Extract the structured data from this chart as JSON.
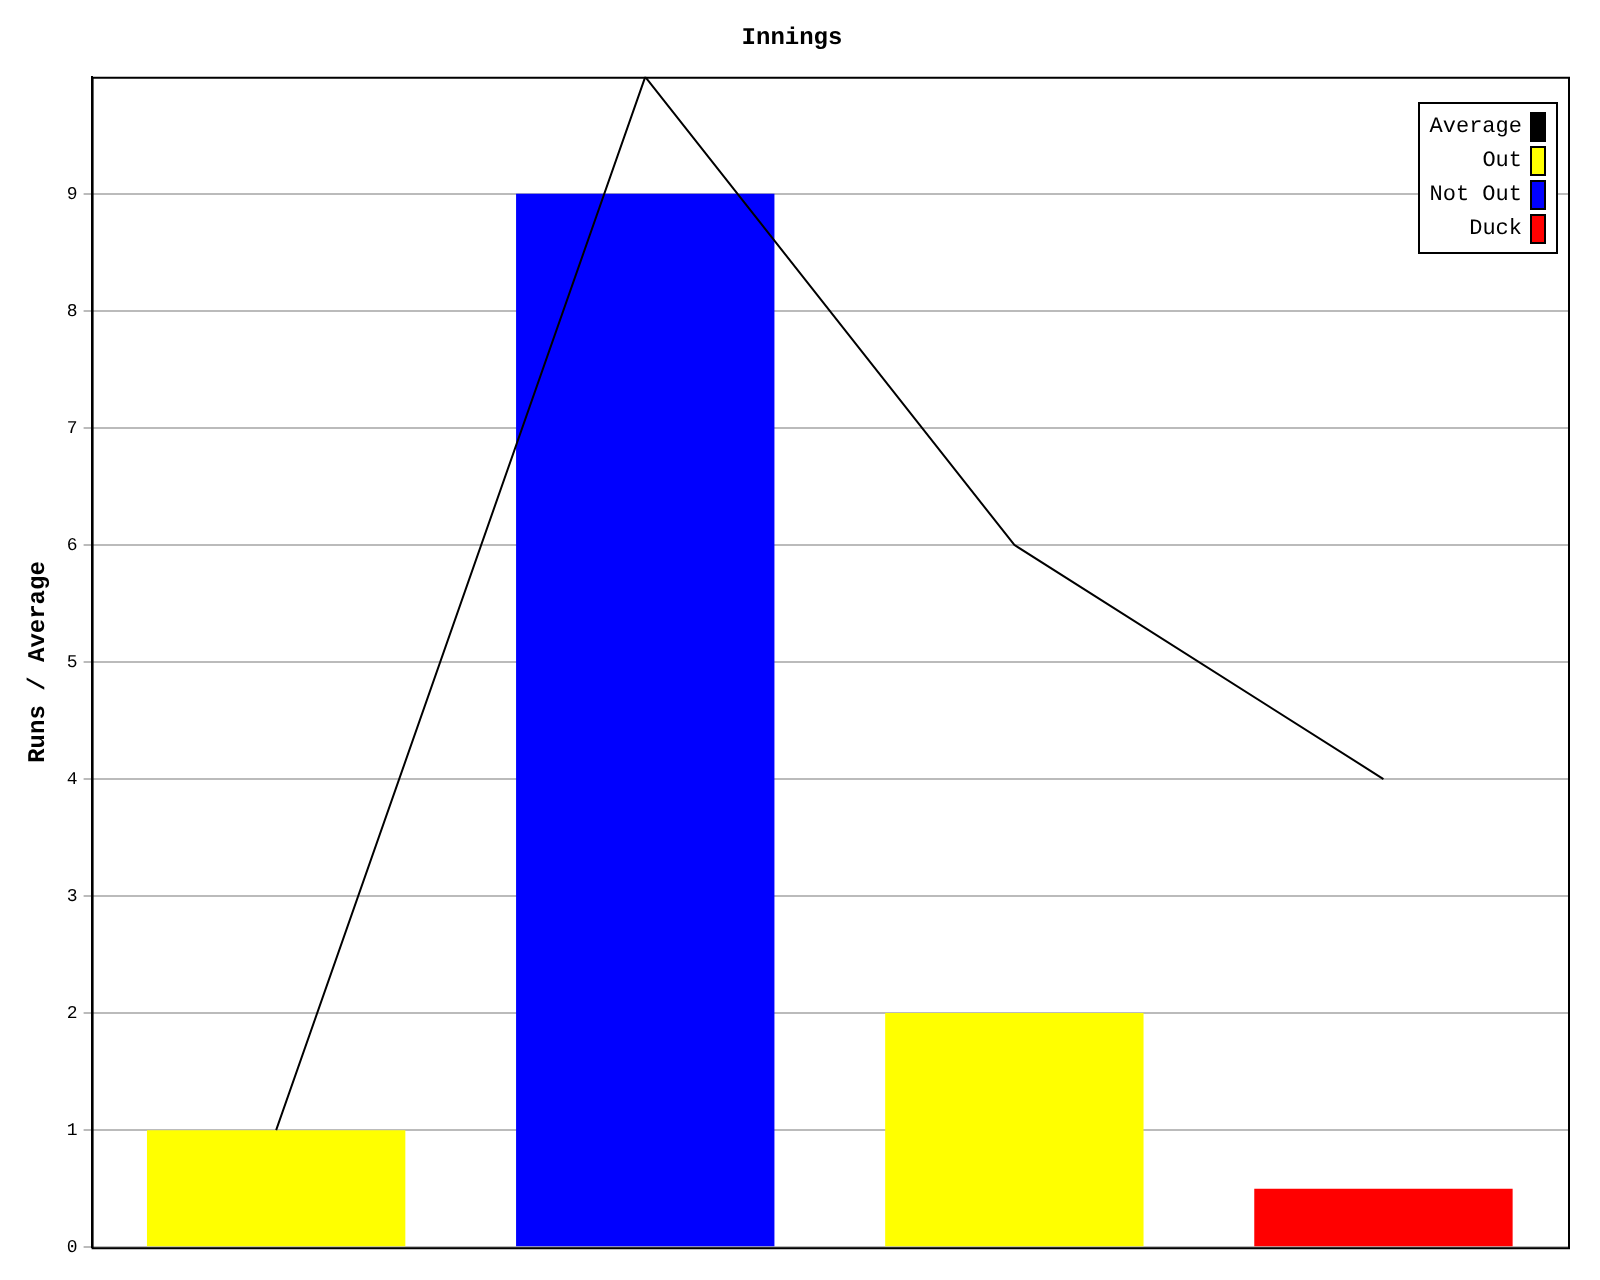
{
  "chart_data": {
    "type": "bar",
    "title": "Innings",
    "ylabel": "Runs / Average",
    "categories": [
      null,
      null,
      null,
      null
    ],
    "stacked": true,
    "ylim": [
      0,
      10
    ],
    "yticks": [
      0,
      1,
      2,
      3,
      4,
      5,
      6,
      7,
      8,
      9
    ],
    "grid": "y",
    "legend": "top right",
    "marker": "none",
    "series": [
      {
        "name": "Average",
        "type": "line",
        "color": "#000000",
        "values": [
          1,
          10,
          6,
          4
        ]
      },
      {
        "name": "Out",
        "color": "#ffff00",
        "values": [
          1,
          null,
          2,
          null
        ]
      },
      {
        "name": "Not Out",
        "color": "#0000ff",
        "values": [
          null,
          9,
          null,
          null
        ]
      },
      {
        "name": "Duck",
        "color": "#ff0000",
        "values": [
          null,
          null,
          null,
          0.5
        ]
      }
    ]
  }
}
